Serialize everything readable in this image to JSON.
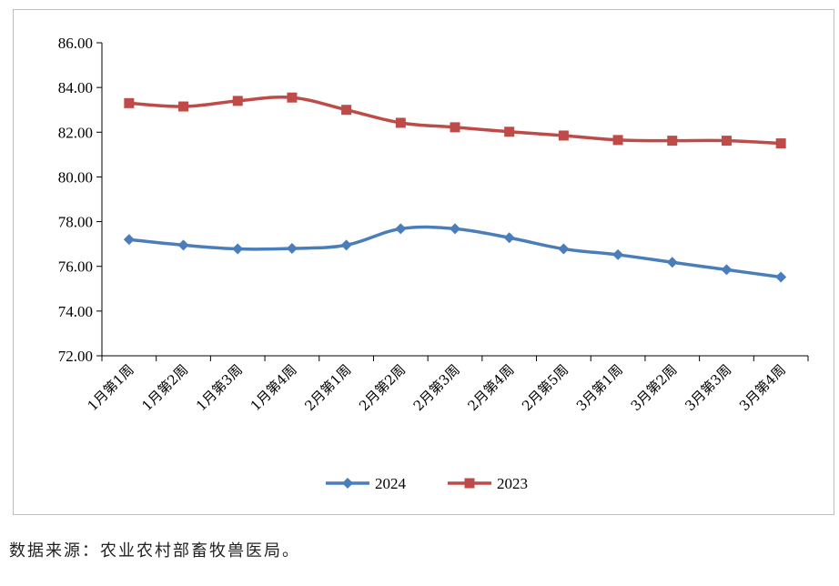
{
  "chart_data": {
    "type": "line",
    "title": "",
    "xlabel": "",
    "ylabel": "",
    "categories": [
      "1月第1周",
      "1月第2周",
      "1月第3周",
      "1月第4周",
      "2月第1周",
      "2月第2周",
      "2月第3周",
      "2月第4周",
      "2月第5周",
      "3月第1周",
      "3月第2周",
      "3月第3周",
      "3月第4周"
    ],
    "series": [
      {
        "name": "2024",
        "color": "#4a7ebb",
        "marker": "diamond",
        "values": [
          77.2,
          76.95,
          76.78,
          76.8,
          76.95,
          77.68,
          77.68,
          77.28,
          76.78,
          76.52,
          76.18,
          75.85,
          75.52
        ]
      },
      {
        "name": "2023",
        "color": "#be4b48",
        "marker": "square",
        "values": [
          83.3,
          83.15,
          83.4,
          83.55,
          83.0,
          82.42,
          82.22,
          82.02,
          81.85,
          81.65,
          81.62,
          81.62,
          81.5
        ]
      }
    ],
    "ylim": [
      72,
      86
    ],
    "yticks": [
      "72.00",
      "74.00",
      "76.00",
      "78.00",
      "80.00",
      "82.00",
      "84.00",
      "86.00"
    ],
    "legend": "bottom-center",
    "grid": false
  },
  "footer": {
    "source": "数据来源：农业农村部畜牧兽医局。"
  }
}
